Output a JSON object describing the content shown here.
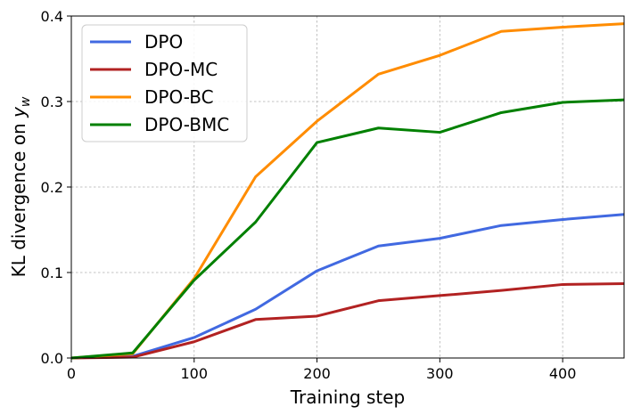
{
  "chart_data": {
    "type": "line",
    "xlabel": "Training step",
    "ylabel": "KL divergence on ",
    "ylabel_subscript_base": "y",
    "ylabel_subscript": "w",
    "xlim": [
      0,
      450
    ],
    "ylim": [
      0,
      0.4
    ],
    "xticks": [
      0,
      100,
      200,
      300,
      400
    ],
    "xtick_labels": [
      "0",
      "100",
      "200",
      "300",
      "400"
    ],
    "yticks": [
      0.0,
      0.1,
      0.2,
      0.3,
      0.4
    ],
    "ytick_labels": [
      "0.0",
      "0.1",
      "0.2",
      "0.3",
      "0.4"
    ],
    "grid": true,
    "legend_position": "top-left",
    "x": [
      0,
      50,
      100,
      150,
      200,
      250,
      300,
      350,
      400,
      450
    ],
    "series": [
      {
        "name": "DPO",
        "color": "#4169e1",
        "values": [
          0.0,
          0.002,
          0.024,
          0.057,
          0.102,
          0.131,
          0.14,
          0.155,
          0.162,
          0.168
        ]
      },
      {
        "name": "DPO-MC",
        "color": "#b22222",
        "values": [
          0.0,
          0.001,
          0.019,
          0.045,
          0.049,
          0.067,
          0.073,
          0.079,
          0.086,
          0.087
        ]
      },
      {
        "name": "DPO-BC",
        "color": "#ff8c00",
        "values": [
          0.0,
          0.005,
          0.093,
          0.212,
          0.277,
          0.332,
          0.354,
          0.382,
          0.387,
          0.391
        ]
      },
      {
        "name": "DPO-BMC",
        "color": "#008000",
        "values": [
          0.0,
          0.006,
          0.091,
          0.159,
          0.252,
          0.269,
          0.264,
          0.287,
          0.299,
          0.302
        ]
      }
    ]
  }
}
